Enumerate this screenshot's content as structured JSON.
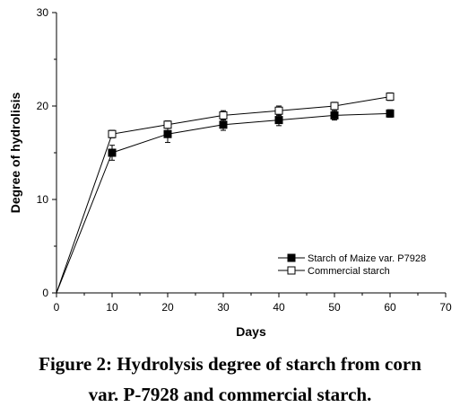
{
  "chart_data": {
    "type": "line",
    "xlabel": "Days",
    "ylabel": "Degree of hydrolisis",
    "xlim": [
      0,
      70
    ],
    "ylim": [
      0,
      30
    ],
    "xticks": [
      0,
      10,
      20,
      30,
      40,
      50,
      60,
      70
    ],
    "yticks": [
      0,
      10,
      20,
      30
    ],
    "grid": false,
    "legend_position": "bottom-right",
    "x": [
      0,
      10,
      20,
      30,
      40,
      50,
      60
    ],
    "series": [
      {
        "name": "Starch of Maize var. P7928",
        "marker": "filled-square",
        "values": [
          0,
          15.0,
          17.0,
          18.0,
          18.5,
          19.0,
          19.2
        ],
        "errors": [
          0,
          0.8,
          0.9,
          0.6,
          0.6,
          0.5,
          0.4
        ]
      },
      {
        "name": "Commercial starch",
        "marker": "open-square",
        "values": [
          0,
          17.0,
          18.0,
          19.0,
          19.5,
          20.0,
          21.0
        ],
        "errors": [
          0,
          0.4,
          0.4,
          0.5,
          0.5,
          0.4,
          0.4
        ]
      }
    ]
  },
  "caption": {
    "line1": "Figure 2: Hydrolysis degree of starch from corn",
    "line2": "var. P-7928 and commercial starch."
  }
}
